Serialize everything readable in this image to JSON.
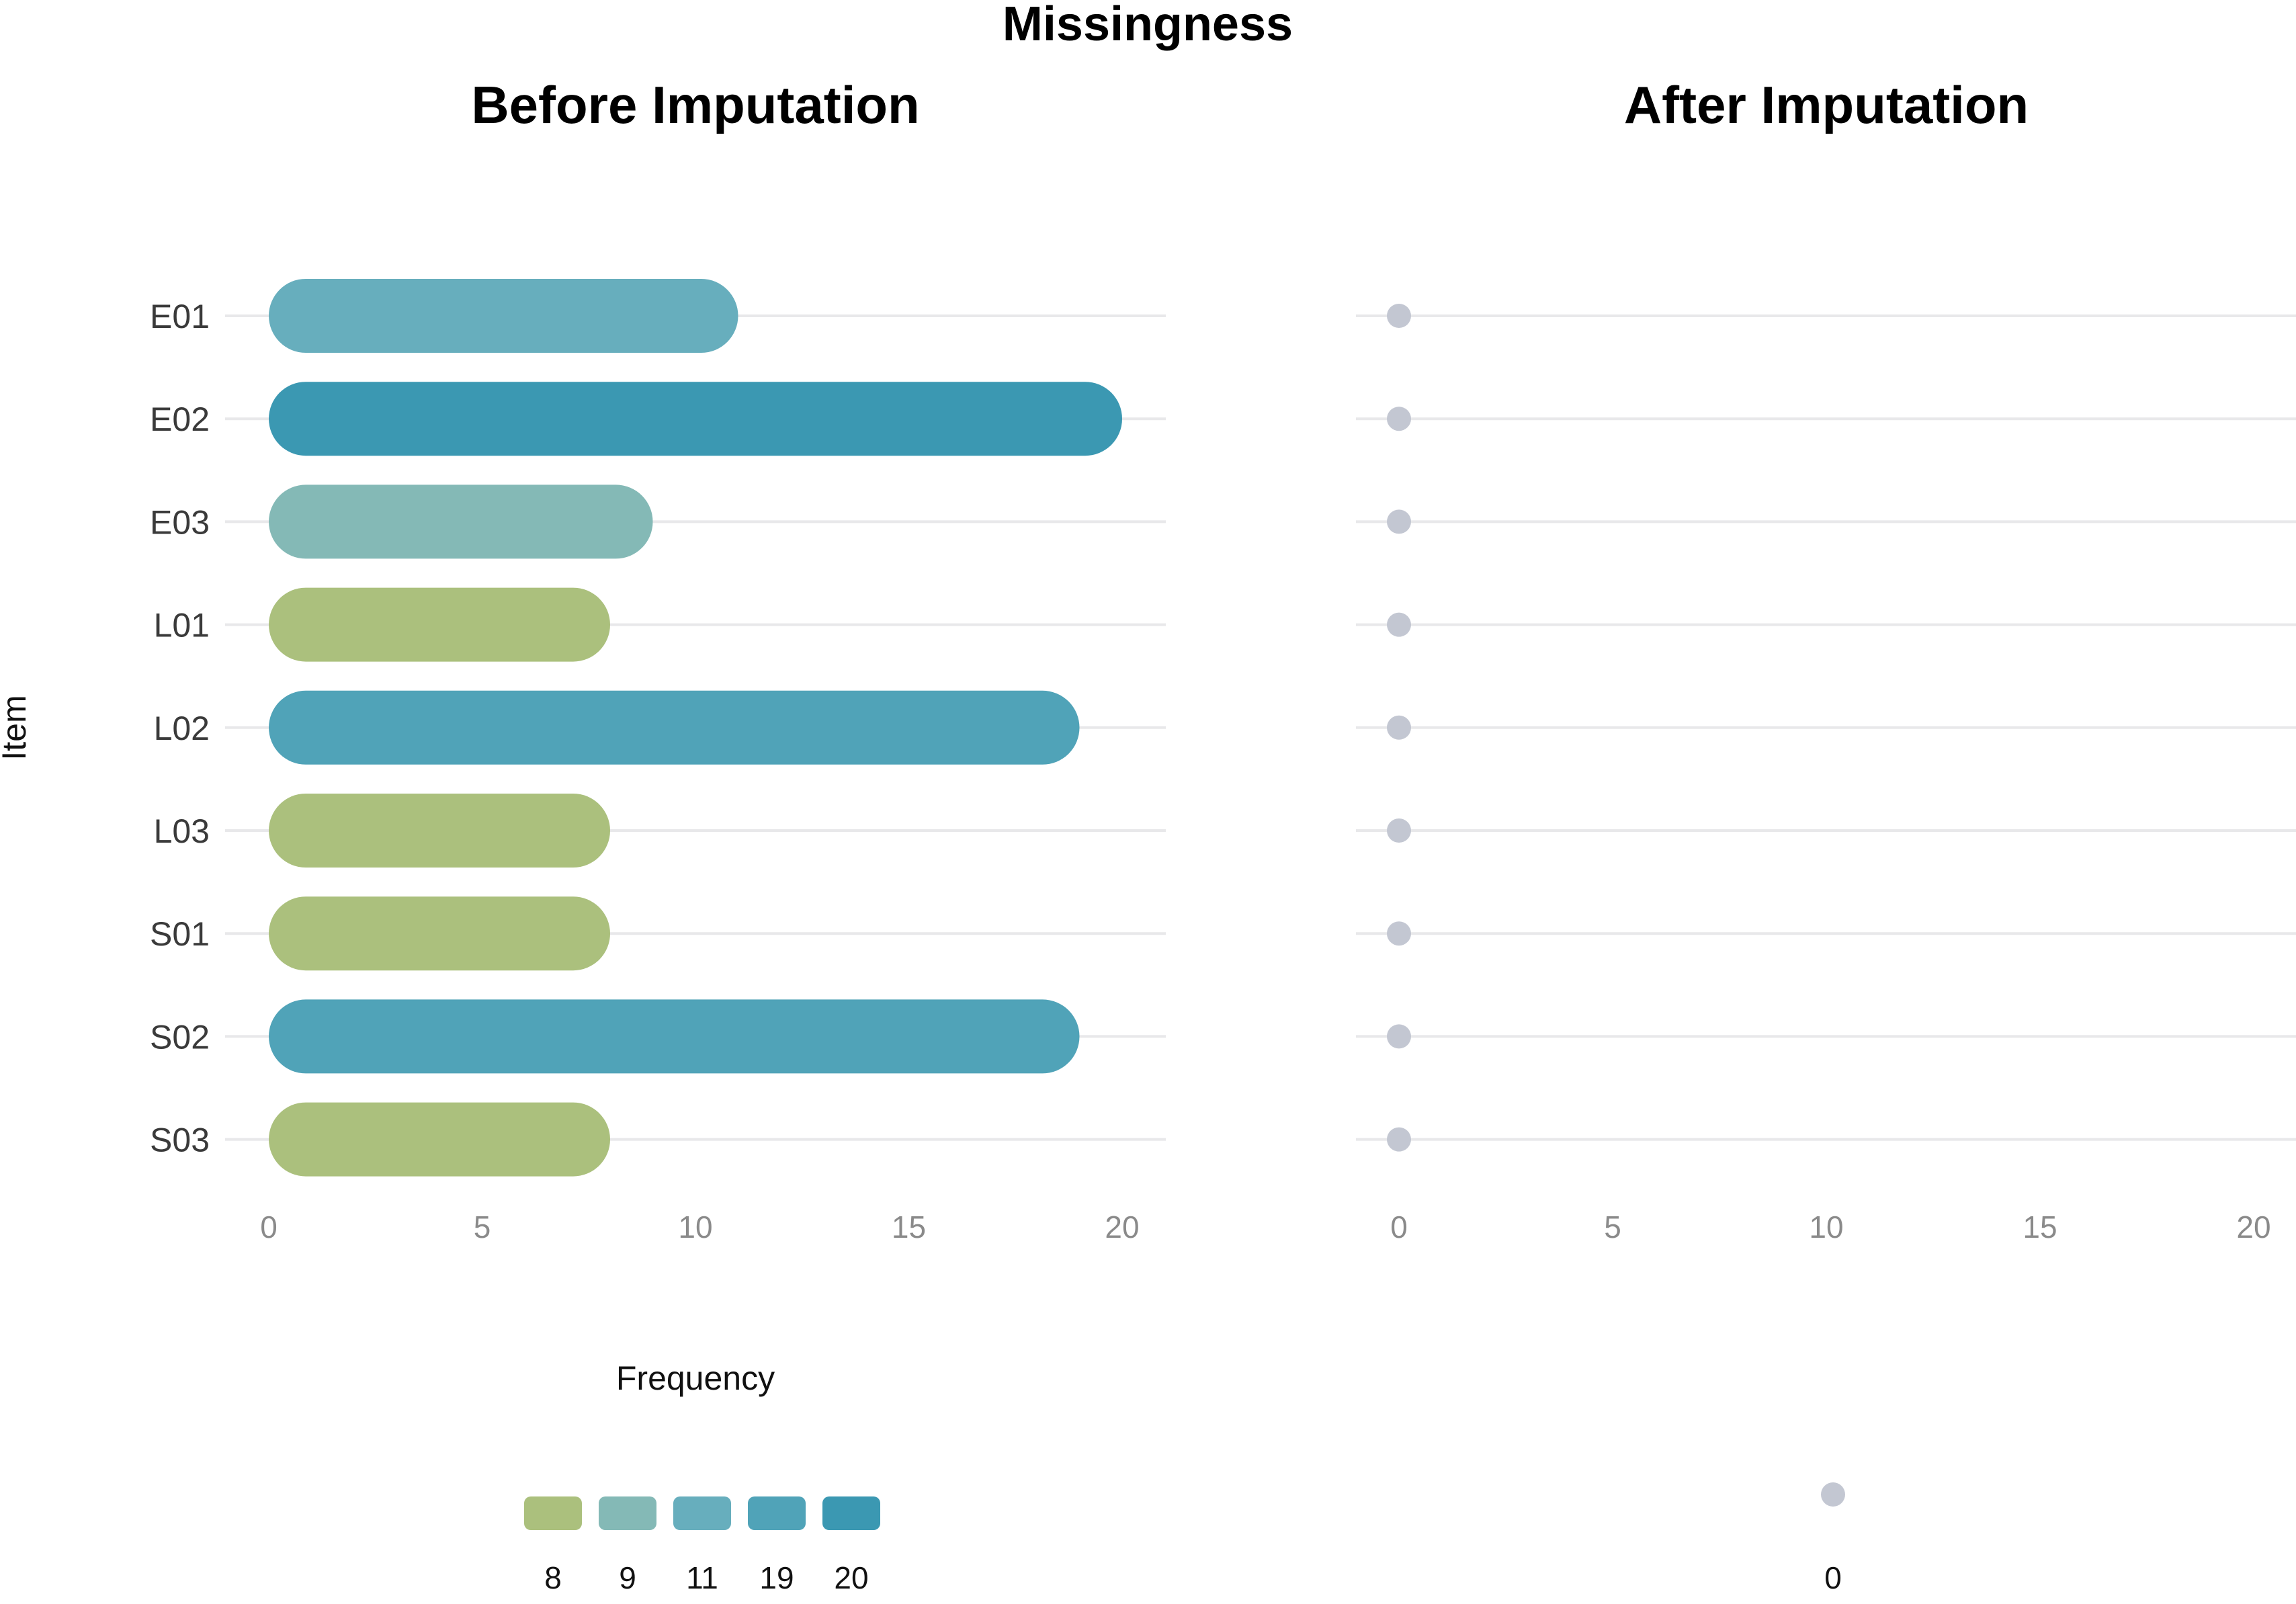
{
  "chart_data": {
    "title": "Missingness",
    "ylabel": "Item",
    "panels": [
      {
        "type": "bar",
        "orientation": "horizontal",
        "title": "Before Imputation",
        "categories": [
          "E01",
          "E02",
          "E03",
          "L01",
          "L02",
          "L03",
          "S01",
          "S02",
          "S03"
        ],
        "values": [
          11,
          20,
          9,
          8,
          19,
          8,
          8,
          19,
          8
        ],
        "xlim": [
          0,
          20
        ],
        "xticks": [
          "0",
          "5",
          "10",
          "15",
          "20"
        ],
        "xlabel": "Frequency",
        "grid": true,
        "legend": {
          "placement": "bottom",
          "keys": [
            "8",
            "9",
            "11",
            "19",
            "20"
          ],
          "colors": [
            "#abc07d",
            "#84b9b6",
            "#67aebd",
            "#50a3b8",
            "#3b98b2"
          ]
        }
      },
      {
        "type": "scatter",
        "title": "After Imputation",
        "categories": [
          "E01",
          "E02",
          "E03",
          "L01",
          "L02",
          "L03",
          "S01",
          "S02",
          "S03"
        ],
        "values": [
          0,
          0,
          0,
          0,
          0,
          0,
          0,
          0,
          0
        ],
        "xlim": [
          0,
          20
        ],
        "xticks": [
          "0",
          "5",
          "10",
          "15",
          "20"
        ],
        "grid": true,
        "legend": {
          "placement": "bottom",
          "keys": [
            "0"
          ],
          "colors": [
            "#c3c7d2"
          ]
        }
      }
    ]
  }
}
